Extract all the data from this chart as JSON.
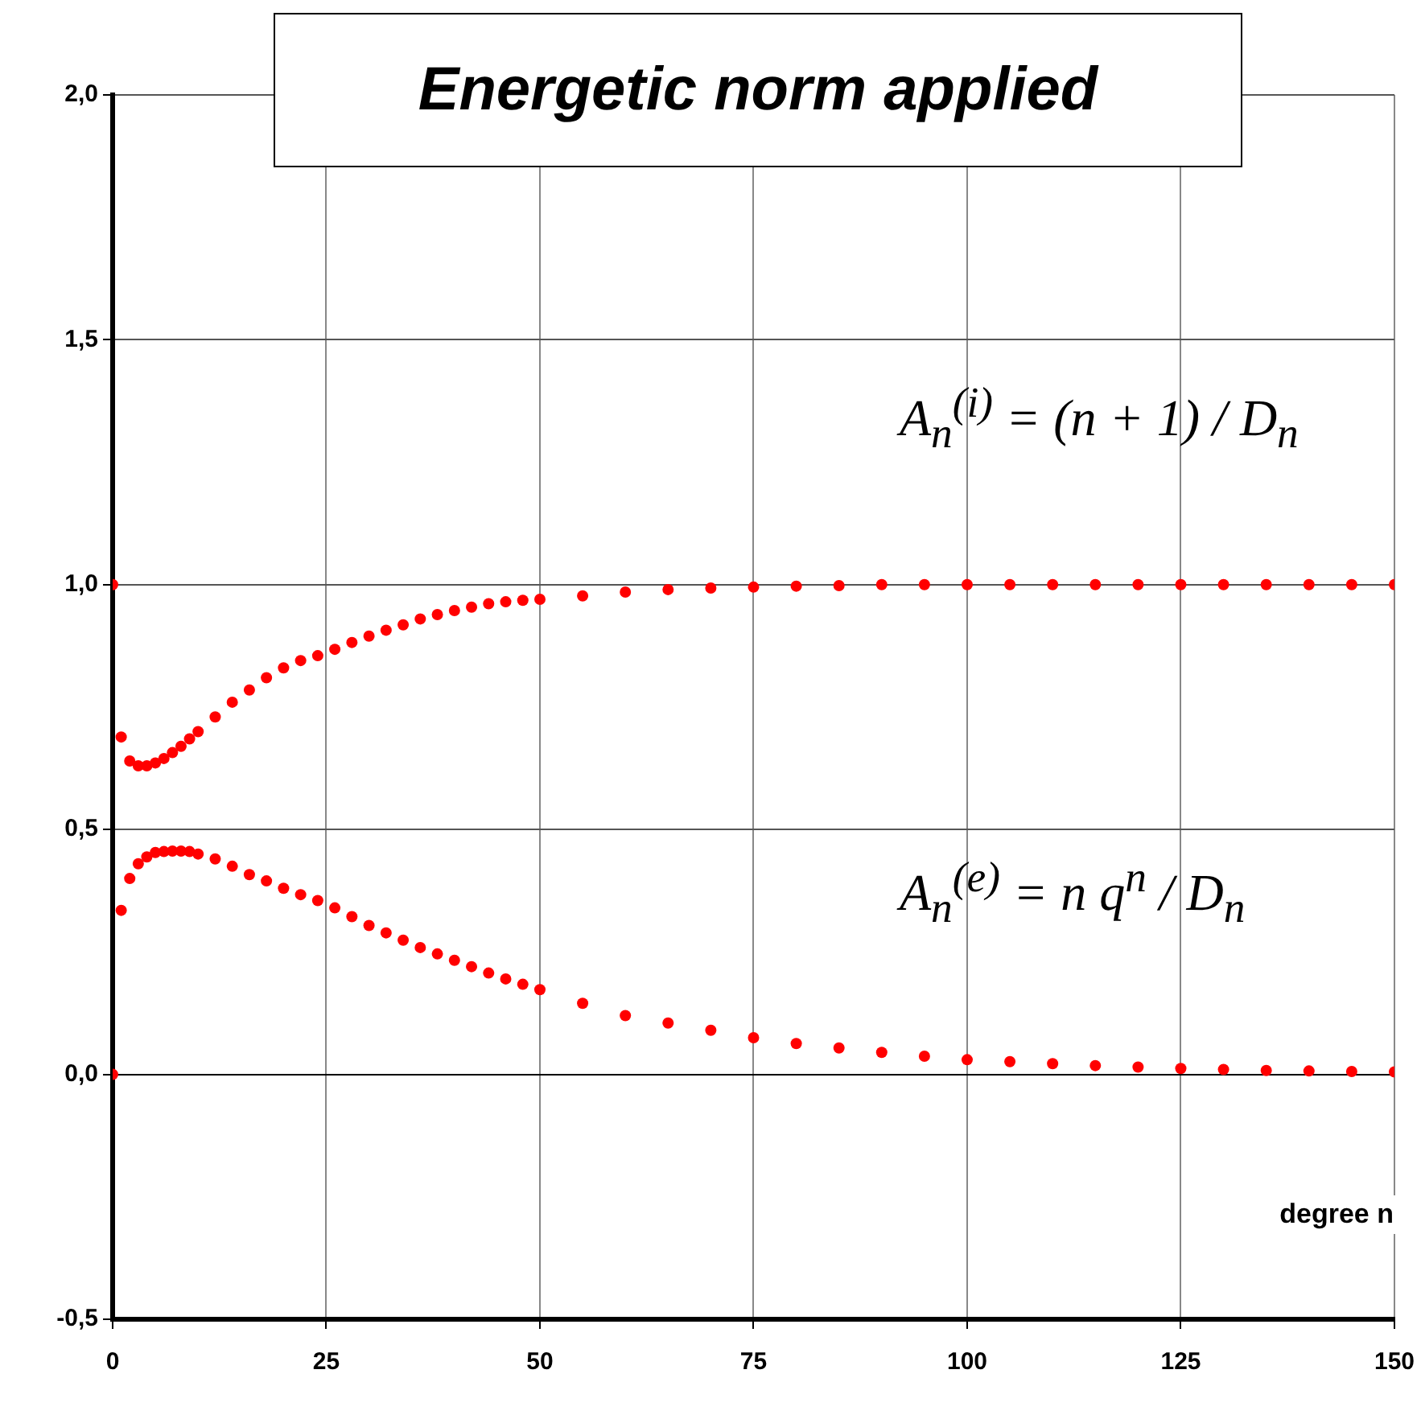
{
  "chart_data": {
    "type": "scatter",
    "title": "Energetic norm applied",
    "xlabel": "degree n",
    "annotations": [
      "A$_{n}$$^{(i)}$ = (n + 1) / D$_{n}$",
      "A$_{n}$$^{(e)}$ = n q$^{n}$ / D$_{n}$"
    ],
    "x": [
      0,
      1,
      2,
      3,
      4,
      5,
      6,
      7,
      8,
      9,
      10,
      12,
      14,
      16,
      18,
      20,
      22,
      24,
      26,
      28,
      30,
      32,
      34,
      36,
      38,
      40,
      42,
      44,
      46,
      48,
      50,
      55,
      60,
      65,
      70,
      75,
      80,
      85,
      90,
      95,
      100,
      105,
      110,
      115,
      120,
      125,
      130,
      135,
      140,
      145,
      150
    ],
    "series": [
      {
        "color": "#ff0000",
        "values": [
          1.0,
          0.689,
          0.64,
          0.63,
          0.63,
          0.636,
          0.645,
          0.657,
          0.67,
          0.685,
          0.7,
          0.73,
          0.76,
          0.785,
          0.81,
          0.83,
          0.845,
          0.855,
          0.868,
          0.882,
          0.895,
          0.907,
          0.918,
          0.93,
          0.939,
          0.947,
          0.954,
          0.961,
          0.965,
          0.968,
          0.97,
          0.977,
          0.985,
          0.99,
          0.993,
          0.995,
          0.997,
          0.998,
          1.0,
          1.0,
          1.0,
          1.0,
          1.0,
          1.0,
          1.0,
          1.0,
          1.0,
          1.0,
          1.0,
          1.0,
          1.0
        ]
      },
      {
        "color": "#ff0000",
        "values": [
          0,
          0.335,
          0.4,
          0.43,
          0.444,
          0.453,
          0.455,
          0.456,
          0.456,
          0.455,
          0.45,
          0.44,
          0.425,
          0.408,
          0.395,
          0.38,
          0.367,
          0.355,
          0.34,
          0.322,
          0.304,
          0.289,
          0.274,
          0.259,
          0.246,
          0.233,
          0.22,
          0.207,
          0.195,
          0.184,
          0.173,
          0.145,
          0.12,
          0.105,
          0.09,
          0.075,
          0.063,
          0.054,
          0.045,
          0.037,
          0.03,
          0.026,
          0.022,
          0.018,
          0.015,
          0.012,
          0.01,
          0.008,
          0.007,
          0.006,
          0.005
        ]
      }
    ],
    "xlim": [
      0,
      150
    ],
    "xticks": [
      0,
      25,
      50,
      75,
      100,
      125,
      150
    ],
    "ylim": [
      -0.5,
      2.0
    ],
    "yticks": [
      {
        "value": -0.5,
        "label": "-0,5"
      },
      {
        "value": 0,
        "label": "0,0"
      },
      {
        "value": 0.5,
        "label": "0,5"
      },
      {
        "value": 1.0,
        "label": "1,0"
      },
      {
        "value": 1.5,
        "label": "1,5"
      },
      {
        "value": 2.0,
        "label": "2,0"
      }
    ],
    "grid": true,
    "legend": false,
    "marker": "circle"
  }
}
